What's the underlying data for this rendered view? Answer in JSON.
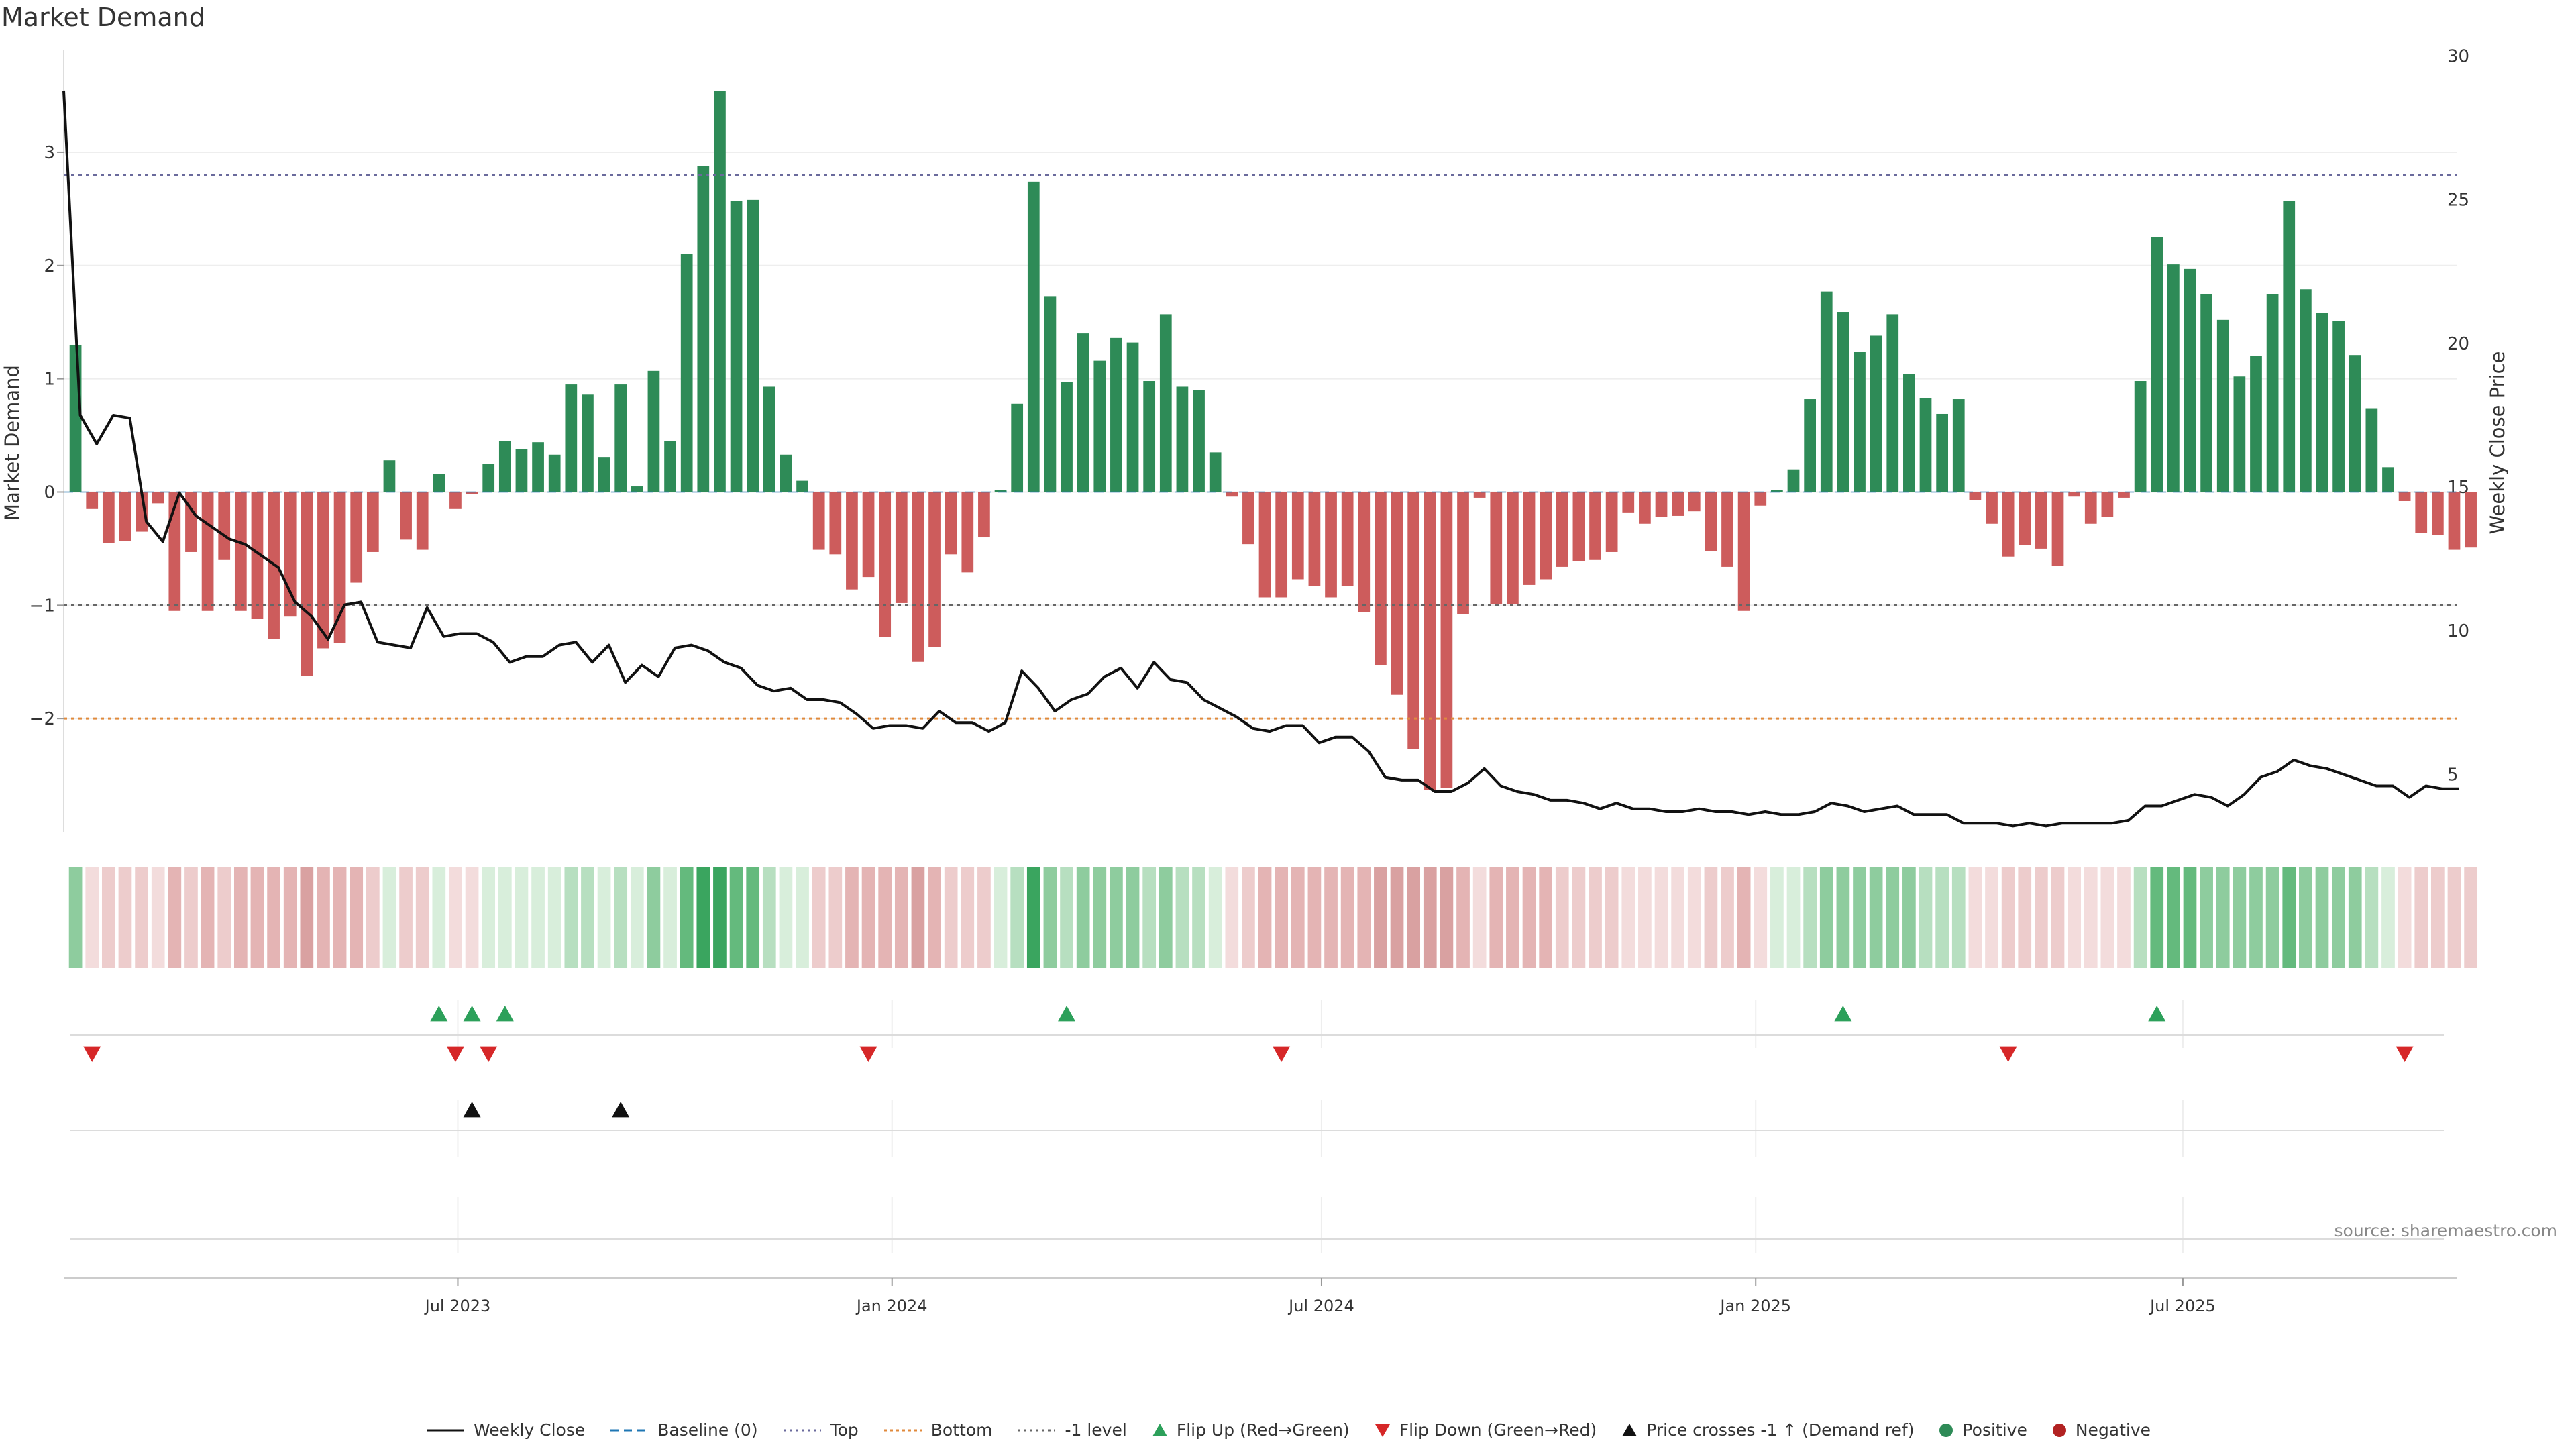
{
  "chart_data": {
    "type": "bar",
    "title": "Market Demand",
    "ylabel_left": "Market Demand",
    "ylabel_right": "Weekly Close Price",
    "source_note": "source: sharemaestro.com",
    "left_ylim": [
      -3.0,
      3.9
    ],
    "left_ticks": [
      3,
      2,
      1,
      0,
      -1,
      -2
    ],
    "left_tick_labels": [
      "3",
      "2",
      "1",
      "0",
      "−1",
      "−2"
    ],
    "right_ylim": [
      3.0,
      30.2
    ],
    "right_ticks": [
      30,
      25,
      20,
      15,
      10,
      5
    ],
    "right_tick_labels": [
      "30",
      "25",
      "20",
      "15",
      "10",
      "5"
    ],
    "x_range": [
      "2023-01-15",
      "2025-10-25"
    ],
    "x_ticks": [
      {
        "date": "2023-07-01",
        "label": "Jul 2023"
      },
      {
        "date": "2024-01-01",
        "label": "Jan 2024"
      },
      {
        "date": "2024-07-01",
        "label": "Jul 2024"
      },
      {
        "date": "2025-01-01",
        "label": "Jan 2025"
      },
      {
        "date": "2025-07-01",
        "label": "Jul 2025"
      }
    ],
    "bar_start_date": "2023-01-20",
    "bar_interval_days": 7,
    "reference_lines": [
      {
        "name": "Top",
        "value": 2.8,
        "color": "#6a6a9c",
        "dash": "dotted"
      },
      {
        "name": "-1 level",
        "value": -1.0,
        "color": "#666666",
        "dash": "dotted"
      },
      {
        "name": "Bottom",
        "value": -2.0,
        "color": "#e08a3c",
        "dash": "dotted"
      },
      {
        "name": "Baseline (0)",
        "value": 0,
        "color": "#1f77b4",
        "dash": "dashed"
      }
    ],
    "demand": [
      1.3,
      -0.15,
      -0.45,
      -0.43,
      -0.35,
      -0.1,
      -1.05,
      -0.53,
      -1.05,
      -0.6,
      -1.05,
      -1.12,
      -1.3,
      -1.1,
      -1.62,
      -1.38,
      -1.33,
      -0.8,
      -0.53,
      0.28,
      -0.42,
      -0.51,
      0.16,
      -0.15,
      -0.02,
      0.25,
      0.45,
      0.38,
      0.44,
      0.33,
      0.95,
      0.86,
      0.31,
      0.95,
      0.05,
      1.07,
      0.45,
      2.1,
      2.88,
      3.54,
      2.57,
      2.58,
      0.93,
      0.33,
      0.1,
      -0.51,
      -0.55,
      -0.86,
      -0.75,
      -1.28,
      -0.98,
      -1.5,
      -1.37,
      -0.55,
      -0.71,
      -0.4,
      0.02,
      0.78,
      2.74,
      1.73,
      0.97,
      1.4,
      1.16,
      1.36,
      1.32,
      0.98,
      1.57,
      0.93,
      0.9,
      0.35,
      -0.04,
      -0.46,
      -0.93,
      -0.93,
      -0.77,
      -0.83,
      -0.93,
      -0.83,
      -1.06,
      -1.53,
      -1.79,
      -2.27,
      -2.63,
      -2.61,
      -1.08,
      -0.05,
      -0.99,
      -0.99,
      -0.82,
      -0.77,
      -0.66,
      -0.61,
      -0.6,
      -0.53,
      -0.18,
      -0.28,
      -0.22,
      -0.21,
      -0.17,
      -0.52,
      -0.66,
      -1.05,
      -0.12,
      0.02,
      0.2,
      0.82,
      1.77,
      1.59,
      1.24,
      1.38,
      1.57,
      1.04,
      0.83,
      0.69,
      0.82,
      -0.07,
      -0.28,
      -0.57,
      -0.47,
      -0.5,
      -0.65,
      -0.04,
      -0.28,
      -0.22,
      -0.05,
      0.98,
      2.25,
      2.01,
      1.97,
      1.75,
      1.52,
      1.02,
      1.2,
      1.75,
      2.57,
      1.79,
      1.58,
      1.51,
      1.21,
      0.74,
      0.22,
      -0.08,
      -0.36,
      -0.38,
      -0.51,
      -0.49
    ],
    "weekly_close_start_date": "2023-01-15",
    "weekly_close": [
      28.8,
      17.5,
      16.5,
      17.5,
      17.4,
      13.8,
      13.1,
      14.8,
      14.0,
      13.6,
      13.2,
      13.0,
      12.6,
      12.2,
      11.0,
      10.5,
      9.7,
      10.9,
      11.0,
      9.6,
      9.5,
      9.4,
      10.8,
      9.8,
      9.9,
      9.9,
      9.6,
      8.9,
      9.1,
      9.1,
      9.5,
      9.6,
      8.9,
      9.5,
      8.2,
      8.8,
      8.4,
      9.4,
      9.5,
      9.3,
      8.9,
      8.7,
      8.1,
      7.9,
      8.0,
      7.6,
      7.6,
      7.5,
      7.1,
      6.6,
      6.7,
      6.7,
      6.6,
      7.2,
      6.8,
      6.8,
      6.5,
      6.8,
      8.6,
      8.0,
      7.2,
      7.6,
      7.8,
      8.4,
      8.7,
      8.0,
      8.9,
      8.3,
      8.2,
      7.6,
      7.3,
      7.0,
      6.6,
      6.5,
      6.7,
      6.7,
      6.1,
      6.3,
      6.3,
      5.8,
      4.9,
      4.8,
      4.8,
      4.4,
      4.4,
      4.7,
      5.2,
      4.6,
      4.4,
      4.3,
      4.1,
      4.1,
      4.0,
      3.8,
      4.0,
      3.8,
      3.8,
      3.7,
      3.7,
      3.8,
      3.7,
      3.7,
      3.6,
      3.7,
      3.6,
      3.6,
      3.7,
      4.0,
      3.9,
      3.7,
      3.8,
      3.9,
      3.6,
      3.6,
      3.6,
      3.3,
      3.3,
      3.3,
      3.2,
      3.3,
      3.2,
      3.3,
      3.3,
      3.3,
      3.3,
      3.4,
      3.9,
      3.9,
      4.1,
      4.3,
      4.2,
      3.9,
      4.3,
      4.9,
      5.1,
      5.5,
      5.3,
      5.2,
      5.0,
      4.8,
      4.6,
      4.6,
      4.2,
      4.6,
      4.5,
      4.5
    ],
    "heat_row": {
      "colors_by_bucket": [
        "#d9a1a1",
        "#e4b4b4",
        "#edcccc",
        "#f3dcdc",
        "#d8eedb",
        "#b7dfc0",
        "#8ecc9e",
        "#64ba7d",
        "#3aa55f"
      ]
    },
    "markers": {
      "flip_up_dates": [
        "2023-06-23",
        "2023-07-07",
        "2023-07-21",
        "2024-03-15",
        "2025-02-07",
        "2025-06-20"
      ],
      "flip_down_dates": [
        "2023-01-27",
        "2023-06-30",
        "2023-07-14",
        "2023-12-22",
        "2024-06-14",
        "2025-04-18",
        "2025-10-03"
      ],
      "price_cross_dates": [
        "2023-07-07",
        "2023-09-08"
      ]
    },
    "legend": [
      {
        "label": "Weekly Close",
        "kind": "line",
        "color": "#111111",
        "dash": ""
      },
      {
        "label": "Baseline (0)",
        "kind": "line",
        "color": "#1f77b4",
        "dash": "12,8"
      },
      {
        "label": "Top",
        "kind": "line",
        "color": "#6a6a9c",
        "dash": "4,5"
      },
      {
        "label": "Bottom",
        "kind": "line",
        "color": "#e08a3c",
        "dash": "4,5"
      },
      {
        "label": "-1 level",
        "kind": "line",
        "color": "#666666",
        "dash": "4,5"
      },
      {
        "label": "Flip Up (Red→Green)",
        "kind": "tri-up",
        "color": "#2ca05a"
      },
      {
        "label": "Flip Down (Green→Red)",
        "kind": "tri-down",
        "color": "#d62728"
      },
      {
        "label": "Price crosses -1 ↑ (Demand ref)",
        "kind": "tri-up",
        "color": "#111111"
      },
      {
        "label": "Positive",
        "kind": "dot",
        "color": "#2e8b57"
      },
      {
        "label": "Negative",
        "kind": "dot",
        "color": "#b22222"
      }
    ],
    "colors": {
      "positive_bar": "#2e8b57",
      "negative_bar": "#cd5c5c",
      "price_line": "#111111",
      "grid": "#eeeeee"
    }
  }
}
